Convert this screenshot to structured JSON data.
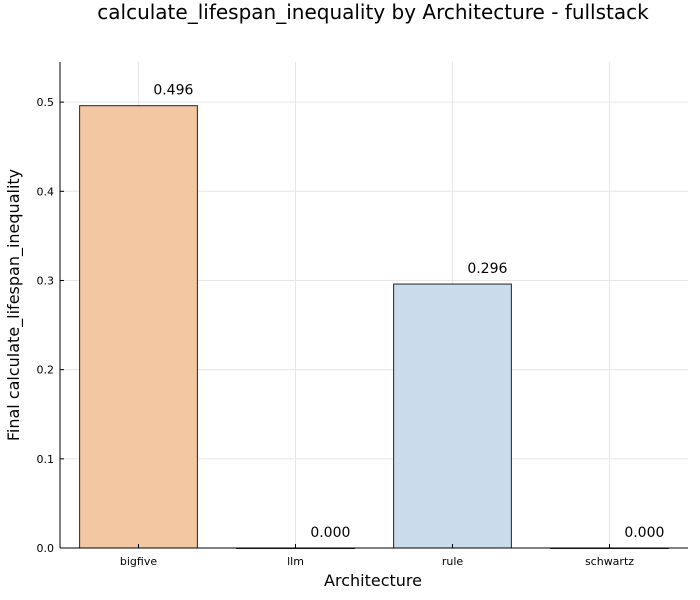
{
  "chart_data": {
    "type": "bar",
    "title": "calculate_lifespan_inequality by Architecture - fullstack",
    "xlabel": "Architecture",
    "ylabel": "Final calculate_lifespan_inequality",
    "categories": [
      "bigfive",
      "llm",
      "rule",
      "schwartz"
    ],
    "values": [
      0.496,
      0.0,
      0.296,
      0.0
    ],
    "data_labels": [
      "0.496",
      "0.000",
      "0.296",
      "0.000"
    ],
    "bar_colors": [
      "#f4c7a3",
      "#bfaac6",
      "#cadcec",
      "#c2ddc6"
    ],
    "ylim": [
      0,
      0.545
    ],
    "yticks": [
      0.0,
      0.1,
      0.2,
      0.3,
      0.4,
      0.5
    ],
    "ytick_labels": [
      "0.0",
      "0.1",
      "0.2",
      "0.3",
      "0.4",
      "0.5"
    ],
    "grid": true,
    "legend": "none"
  }
}
